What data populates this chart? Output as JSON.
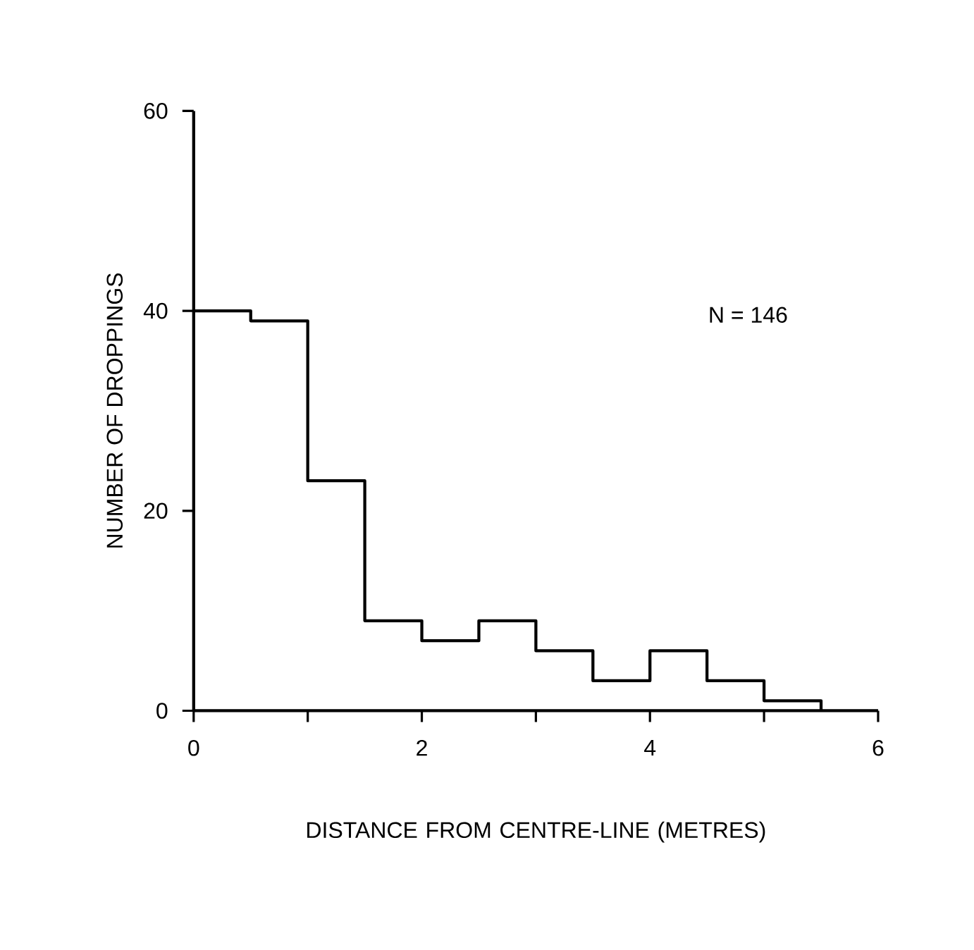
{
  "chart_data": {
    "type": "histogram",
    "xlabel": "DISTANCE FROM CENTRE-LINE (METRES)",
    "ylabel": "NUMBER OF DROPPINGS",
    "annotations": [
      "N = 146"
    ],
    "bins": [
      0,
      0.5,
      1,
      1.5,
      2,
      2.5,
      3,
      3.5,
      4,
      4.5,
      5,
      5.5
    ],
    "values": [
      40,
      39,
      23,
      9,
      7,
      9,
      6,
      3,
      6,
      3,
      1
    ],
    "color": "#000000",
    "xlim": [
      0,
      6
    ],
    "ylim": [
      0,
      60
    ],
    "xticks": [
      0,
      {
        "value": 1,
        "label": null
      },
      2,
      {
        "value": 3,
        "label": null
      },
      4,
      {
        "value": 5,
        "label": null
      },
      6
    ],
    "yticks": [
      0,
      20,
      40,
      60
    ],
    "grid": false
  }
}
